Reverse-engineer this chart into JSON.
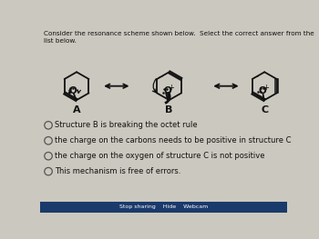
{
  "title_line1": "Consider the resonance scheme shown below.  Select the correct answer from the",
  "title_line2": "list below.",
  "bg_color": "#cbc8bf",
  "text_color": "#111111",
  "options": [
    "Structure B is breaking the octet rule",
    "the charge on the carbons needs to be positive in structure C",
    "the charge on the oxygen of structure C is not positive",
    "This mechanism is free of errors."
  ],
  "labels": [
    "A",
    "B",
    "C"
  ],
  "struct_color": "#111111",
  "bottom_bar_color": "#1a3a6b",
  "bottom_text": "Stop sharing    Hide    Webcam",
  "bottom_text_color": "#ffffff"
}
